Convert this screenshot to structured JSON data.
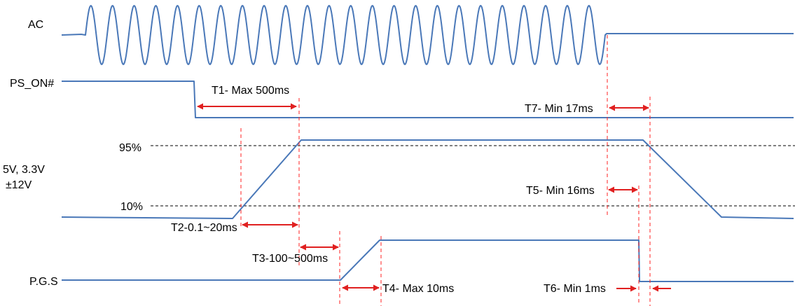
{
  "colors": {
    "signal": "#4a78b8",
    "marker": "#ff2222",
    "arrow": "#e02020",
    "threshold": "#000000"
  },
  "signals": {
    "ac": "AC",
    "ps_on": "PS_ON#",
    "rail_line1": "5V, 3.3V",
    "rail_line2": "±12V",
    "pgs": "P.G.S"
  },
  "thresholds": {
    "high": "95%",
    "low": "10%"
  },
  "timings": {
    "t1": "T1- Max 500ms",
    "t2": "T2-0.1~20ms",
    "t3": "T3-100~500ms",
    "t4": "T4- Max 10ms",
    "t5": "T5- Min 16ms",
    "t6": "T6- Min 1ms",
    "t7": "T7- Min 17ms"
  }
}
